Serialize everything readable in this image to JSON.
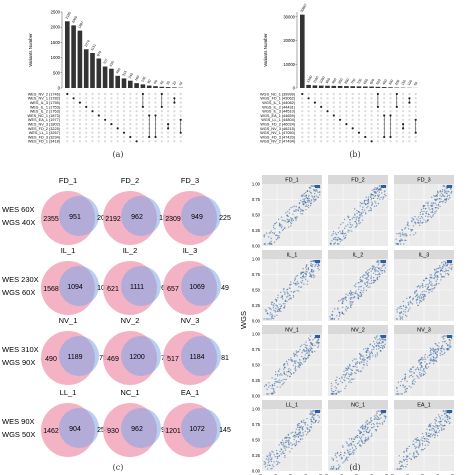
{
  "captions": {
    "a": "(a)",
    "b": "(b)",
    "c": "(c)",
    "d": "(d)"
  },
  "upset_a": {
    "ylabel": "Variants Number",
    "yticks": [
      "0",
      "500",
      "1000",
      "1500",
      "2000",
      "2500"
    ],
    "ymax": 2500,
    "bars": [
      {
        "value": 2195,
        "label": "2195"
      },
      {
        "value": 2060,
        "label": "2060"
      },
      {
        "value": 1887,
        "label": "1887"
      },
      {
        "value": 1274,
        "label": "1274"
      },
      {
        "value": 1151,
        "label": "1151"
      },
      {
        "value": 970,
        "label": "970"
      },
      {
        "value": 707,
        "label": "707"
      },
      {
        "value": 635,
        "label": "635"
      },
      {
        "value": 400,
        "label": "400"
      },
      {
        "value": 315,
        "label": "315"
      },
      {
        "value": 240,
        "label": "240"
      },
      {
        "value": 160,
        "label": "160"
      },
      {
        "value": 120,
        "label": "120"
      },
      {
        "value": 80,
        "label": "80"
      },
      {
        "value": 60,
        "label": "60"
      },
      {
        "value": 40,
        "label": "40"
      },
      {
        "value": 30,
        "label": "30"
      },
      {
        "value": 20,
        "label": "20"
      },
      {
        "value": 10,
        "label": "10"
      }
    ],
    "sets": [
      "WES_NV_2 (1746)",
      "WES_NV_1 (1782)",
      "WES_IL_3 (1755)",
      "WES_IL_1 (1753)",
      "WES_IL_2 (1763)",
      "WES_NC_1 (1873)",
      "WES_EA_1 (1977)",
      "WES_NV_3 (1802)",
      "WES_FD_2 (3225)",
      "WES_LL_1 (3267)",
      "WES_FD_3 (3234)",
      "WES_FD_1 (3418)"
    ]
  },
  "upset_b": {
    "ylabel": "Variants Number",
    "yticks": [
      "0",
      "10000",
      "20000",
      "30000"
    ],
    "ymax": 32000,
    "bars": [
      {
        "value": 30887,
        "label": "30887"
      },
      {
        "value": 1300,
        "label": "1300"
      },
      {
        "value": 1100,
        "label": "1100"
      },
      {
        "value": 1000,
        "label": "1000"
      },
      {
        "value": 950,
        "label": "950"
      },
      {
        "value": 900,
        "label": "900"
      },
      {
        "value": 850,
        "label": "850"
      },
      {
        "value": 800,
        "label": "800"
      },
      {
        "value": 750,
        "label": "750"
      },
      {
        "value": 700,
        "label": "700"
      },
      {
        "value": 650,
        "label": "650"
      },
      {
        "value": 600,
        "label": "600"
      },
      {
        "value": 500,
        "label": "500"
      },
      {
        "value": 400,
        "label": "400"
      },
      {
        "value": 300,
        "label": "300"
      },
      {
        "value": 200,
        "label": "200"
      },
      {
        "value": 150,
        "label": "150"
      },
      {
        "value": 100,
        "label": "100"
      },
      {
        "value": 50,
        "label": "50"
      }
    ],
    "sets": [
      "WGS_NC_1 (39999)",
      "WGS_FD_1 (43062)",
      "WGS_IL_1 (44082)",
      "WGS_IL_2 (44431)",
      "WGS_IL_3 (44510)",
      "WGS_EA_1 (44659)",
      "WGS_LL_1 (44804)",
      "WGS_FD_2 (46024)",
      "WGS_NV_3 (46215)",
      "WGS_NV_1 (47050)",
      "WGS_FD_3 (47420)",
      "WGS_NV_2 (47434)"
    ]
  },
  "venn": {
    "row_labels": [
      [
        "WES  60X",
        "WGS  40X"
      ],
      [
        "WES 230X",
        "WGS  60X"
      ],
      [
        "WES 310X",
        "WGS  90X"
      ],
      [
        "WES  90X",
        "WGS  50X"
      ]
    ],
    "panels": [
      {
        "title": "FD_1",
        "left": "2355",
        "mid": "951",
        "right": "208"
      },
      {
        "title": "FD_2",
        "left": "2192",
        "mid": "962",
        "right": "199"
      },
      {
        "title": "FD_3",
        "left": "2309",
        "mid": "949",
        "right": "225"
      },
      {
        "title": "IL_1",
        "left": "1568",
        "mid": "1094",
        "right": "107"
      },
      {
        "title": "IL_2",
        "left": "621",
        "mid": "1111",
        "right": "61"
      },
      {
        "title": "IL_3",
        "left": "657",
        "mid": "1069",
        "right": "49"
      },
      {
        "title": "NV_1",
        "left": "490",
        "mid": "1189",
        "right": "75"
      },
      {
        "title": "NV_2",
        "left": "469",
        "mid": "1200",
        "right": "77"
      },
      {
        "title": "NV_3",
        "left": "517",
        "mid": "1184",
        "right": "81"
      },
      {
        "title": "LL_1",
        "left": "1462",
        "mid": "904",
        "right": "256"
      },
      {
        "title": "NC_1",
        "left": "930",
        "mid": "962",
        "right": "92"
      },
      {
        "title": "EA_1",
        "left": "1201",
        "mid": "1072",
        "right": "145"
      }
    ]
  },
  "scatter": {
    "xlabel": "WES",
    "ylabel": "WGS",
    "ticks": [
      "0.00",
      "0.25",
      "0.50",
      "0.75",
      "1.00"
    ],
    "panels": [
      "FD_1",
      "FD_2",
      "FD_3",
      "IL_1",
      "IL_2",
      "IL_3",
      "NV_1",
      "NV_2",
      "NV_3",
      "LL_1",
      "NC_1",
      "EA_1"
    ]
  },
  "colors": {
    "bar": "#333333",
    "dot_active": "#222222",
    "dot_inactive": "#d8d8d8",
    "venn_wes": "#f2a5bb",
    "venn_wgs": "#7ea7e8",
    "venn_overlap": "#c5a3d9",
    "scatter_point": "#2f5f9e",
    "scatter_panel": "#ebebeb",
    "strip": "#d9d9d9"
  }
}
